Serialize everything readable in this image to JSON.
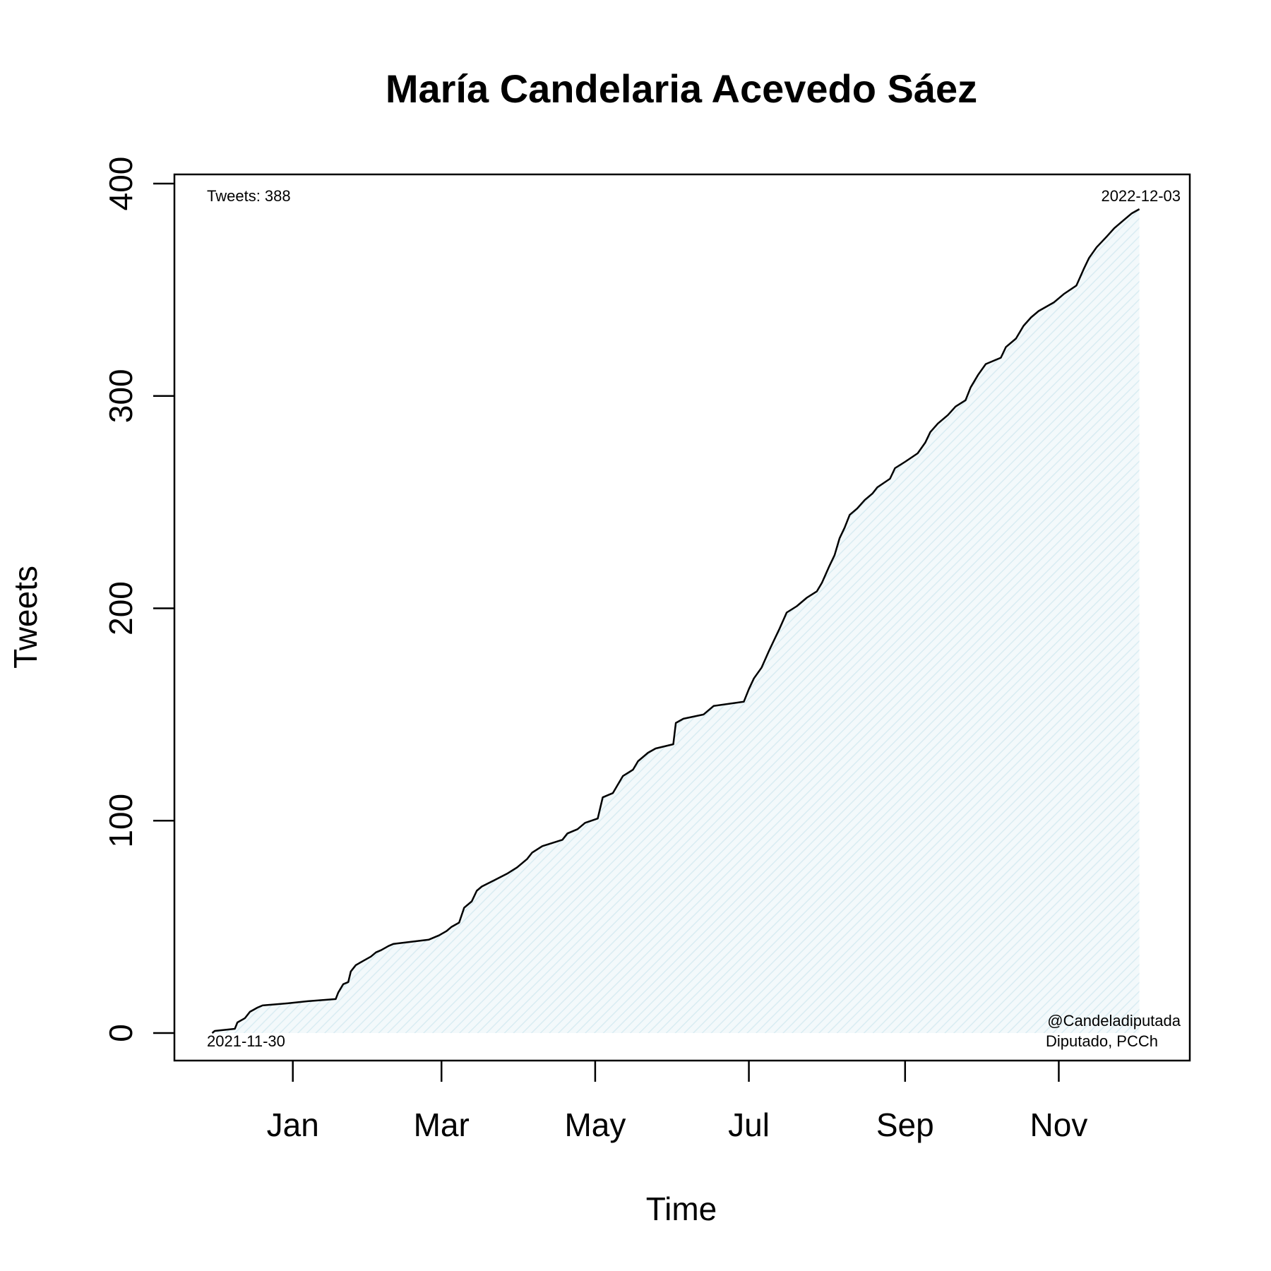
{
  "chart_data": {
    "type": "area",
    "title": "María Candelaria Acevedo Sáez",
    "xlabel": "Time",
    "ylabel": "Tweets",
    "ylim": [
      0,
      400
    ],
    "xlim": [
      "2021-11-15",
      "2022-12-23"
    ],
    "y_ticks": [
      0,
      100,
      200,
      300,
      400
    ],
    "x_ticks": [
      {
        "date": "2022-01-01",
        "label": "Jan"
      },
      {
        "date": "2022-03-01",
        "label": "Mar"
      },
      {
        "date": "2022-05-01",
        "label": "May"
      },
      {
        "date": "2022-07-01",
        "label": "Jul"
      },
      {
        "date": "2022-09-01",
        "label": "Sep"
      },
      {
        "date": "2022-11-01",
        "label": "Nov"
      }
    ],
    "annotations": {
      "count": "Tweets: 388",
      "end_date": "2022-12-03",
      "start_date": "2021-11-30",
      "handle": "@Candeladiputada",
      "role": "Diputado, PCCh"
    },
    "fill_color": "#e8f4f8",
    "line_color": "#000000",
    "series": [
      {
        "points": [
          [
            "2021-11-30",
            0
          ],
          [
            "2021-12-01",
            1
          ],
          [
            "2021-12-09",
            2
          ],
          [
            "2021-12-10",
            5
          ],
          [
            "2021-12-13",
            7
          ],
          [
            "2021-12-15",
            10
          ],
          [
            "2021-12-18",
            12
          ],
          [
            "2021-12-20",
            13
          ],
          [
            "2021-12-30",
            14
          ],
          [
            "2022-01-07",
            15
          ],
          [
            "2022-01-18",
            16
          ],
          [
            "2022-01-19",
            19
          ],
          [
            "2022-01-21",
            23
          ],
          [
            "2022-01-23",
            24
          ],
          [
            "2022-01-24",
            29
          ],
          [
            "2022-01-26",
            32
          ],
          [
            "2022-01-29",
            34
          ],
          [
            "2022-02-01",
            36
          ],
          [
            "2022-02-03",
            38
          ],
          [
            "2022-02-05",
            39
          ],
          [
            "2022-02-08",
            41
          ],
          [
            "2022-02-10",
            42
          ],
          [
            "2022-02-24",
            44
          ],
          [
            "2022-02-28",
            46
          ],
          [
            "2022-03-03",
            48
          ],
          [
            "2022-03-05",
            50
          ],
          [
            "2022-03-08",
            52
          ],
          [
            "2022-03-10",
            59
          ],
          [
            "2022-03-13",
            62
          ],
          [
            "2022-03-15",
            67
          ],
          [
            "2022-03-17",
            69
          ],
          [
            "2022-03-22",
            72
          ],
          [
            "2022-03-27",
            75
          ],
          [
            "2022-03-31",
            78
          ],
          [
            "2022-04-04",
            82
          ],
          [
            "2022-04-06",
            85
          ],
          [
            "2022-04-10",
            88
          ],
          [
            "2022-04-18",
            91
          ],
          [
            "2022-04-20",
            94
          ],
          [
            "2022-04-24",
            96
          ],
          [
            "2022-04-27",
            99
          ],
          [
            "2022-05-02",
            101
          ],
          [
            "2022-05-04",
            111
          ],
          [
            "2022-05-08",
            113
          ],
          [
            "2022-05-10",
            117
          ],
          [
            "2022-05-12",
            121
          ],
          [
            "2022-05-16",
            124
          ],
          [
            "2022-05-18",
            128
          ],
          [
            "2022-05-22",
            132
          ],
          [
            "2022-05-25",
            134
          ],
          [
            "2022-06-01",
            136
          ],
          [
            "2022-06-02",
            146
          ],
          [
            "2022-06-05",
            148
          ],
          [
            "2022-06-13",
            150
          ],
          [
            "2022-06-17",
            154
          ],
          [
            "2022-06-29",
            156
          ],
          [
            "2022-07-01",
            162
          ],
          [
            "2022-07-03",
            167
          ],
          [
            "2022-07-06",
            172
          ],
          [
            "2022-07-09",
            180
          ],
          [
            "2022-07-11",
            185
          ],
          [
            "2022-07-13",
            190
          ],
          [
            "2022-07-16",
            198
          ],
          [
            "2022-07-20",
            201
          ],
          [
            "2022-07-24",
            205
          ],
          [
            "2022-07-28",
            208
          ],
          [
            "2022-07-30",
            212
          ],
          [
            "2022-08-02",
            220
          ],
          [
            "2022-08-04",
            225
          ],
          [
            "2022-08-06",
            233
          ],
          [
            "2022-08-08",
            238
          ],
          [
            "2022-08-10",
            244
          ],
          [
            "2022-08-13",
            247
          ],
          [
            "2022-08-16",
            251
          ],
          [
            "2022-08-19",
            254
          ],
          [
            "2022-08-21",
            257
          ],
          [
            "2022-08-26",
            261
          ],
          [
            "2022-08-28",
            266
          ],
          [
            "2022-09-01",
            269
          ],
          [
            "2022-09-06",
            273
          ],
          [
            "2022-09-09",
            278
          ],
          [
            "2022-09-11",
            283
          ],
          [
            "2022-09-14",
            287
          ],
          [
            "2022-09-18",
            291
          ],
          [
            "2022-09-21",
            295
          ],
          [
            "2022-09-25",
            298
          ],
          [
            "2022-09-27",
            304
          ],
          [
            "2022-09-30",
            310
          ],
          [
            "2022-10-03",
            315
          ],
          [
            "2022-10-09",
            318
          ],
          [
            "2022-10-11",
            323
          ],
          [
            "2022-10-15",
            327
          ],
          [
            "2022-10-18",
            333
          ],
          [
            "2022-10-21",
            337
          ],
          [
            "2022-10-24",
            340
          ],
          [
            "2022-10-30",
            344
          ],
          [
            "2022-11-03",
            348
          ],
          [
            "2022-11-08",
            352
          ],
          [
            "2022-11-11",
            360
          ],
          [
            "2022-11-13",
            365
          ],
          [
            "2022-11-16",
            370
          ],
          [
            "2022-11-20",
            375
          ],
          [
            "2022-11-23",
            379
          ],
          [
            "2022-11-27",
            383
          ],
          [
            "2022-11-30",
            386
          ],
          [
            "2022-12-03",
            388
          ]
        ]
      }
    ]
  }
}
